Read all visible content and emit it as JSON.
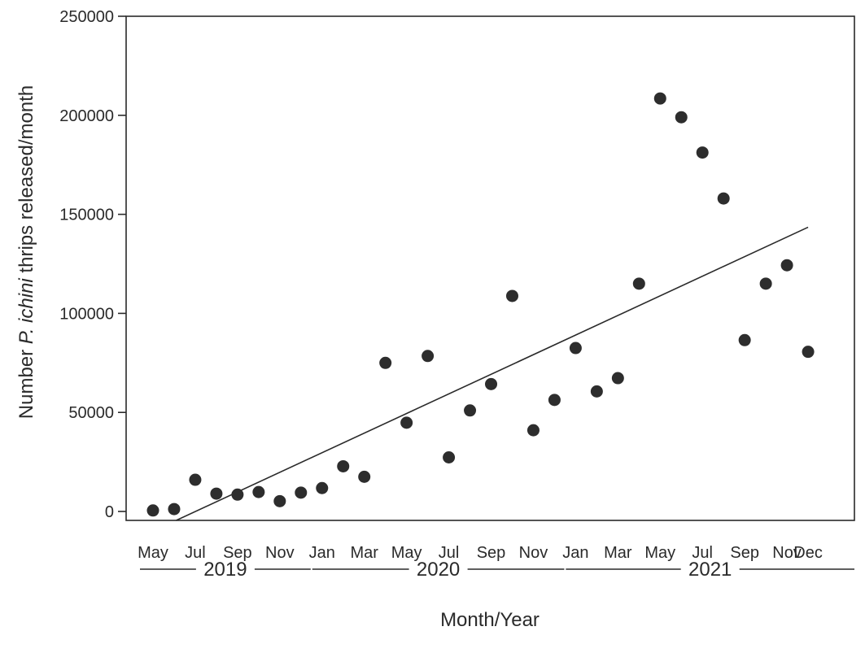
{
  "chart_data": {
    "type": "scatter",
    "title": "",
    "xlabel": "Month/Year",
    "ylabel_parts": {
      "before": "Number ",
      "italic": "P. ichini",
      "after": " thrips released/month"
    },
    "ylim": [
      0,
      250000
    ],
    "y_ticks": [
      0,
      50000,
      100000,
      150000,
      200000,
      250000
    ],
    "y_tick_labels": [
      "0",
      "50000",
      "100000",
      "150000",
      "200000",
      "250000"
    ],
    "x_tick_labels": [
      {
        "month": "2019-05",
        "label": "May"
      },
      {
        "month": "2019-07",
        "label": "Jul"
      },
      {
        "month": "2019-09",
        "label": "Sep"
      },
      {
        "month": "2019-11",
        "label": "Nov"
      },
      {
        "month": "2020-01",
        "label": "Jan"
      },
      {
        "month": "2020-03",
        "label": "Mar"
      },
      {
        "month": "2020-05",
        "label": "May"
      },
      {
        "month": "2020-07",
        "label": "Jul"
      },
      {
        "month": "2020-09",
        "label": "Sep"
      },
      {
        "month": "2020-11",
        "label": "Nov"
      },
      {
        "month": "2021-01",
        "label": "Jan"
      },
      {
        "month": "2021-03",
        "label": "Mar"
      },
      {
        "month": "2021-05",
        "label": "May"
      },
      {
        "month": "2021-07",
        "label": "Jul"
      },
      {
        "month": "2021-09",
        "label": "Sep"
      },
      {
        "month": "2021-11",
        "label": "Nov"
      },
      {
        "month": "2021-12",
        "label": "Dec"
      }
    ],
    "year_groups": [
      {
        "label": "2019",
        "from": "2019-05",
        "to": "2019-12"
      },
      {
        "label": "2020",
        "from": "2020-01",
        "to": "2020-12"
      },
      {
        "label": "2021",
        "from": "2021-01",
        "to": "2021-12"
      }
    ],
    "points": [
      {
        "month": "2019-05",
        "value": 500
      },
      {
        "month": "2019-06",
        "value": 1200
      },
      {
        "month": "2019-07",
        "value": 16000
      },
      {
        "month": "2019-08",
        "value": 9000
      },
      {
        "month": "2019-09",
        "value": 8500
      },
      {
        "month": "2019-10",
        "value": 9800
      },
      {
        "month": "2019-11",
        "value": 5200
      },
      {
        "month": "2019-12",
        "value": 9500
      },
      {
        "month": "2020-01",
        "value": 11800
      },
      {
        "month": "2020-02",
        "value": 22800
      },
      {
        "month": "2020-03",
        "value": 17500
      },
      {
        "month": "2020-04",
        "value": 75000
      },
      {
        "month": "2020-05",
        "value": 44800
      },
      {
        "month": "2020-06",
        "value": 78500
      },
      {
        "month": "2020-07",
        "value": 27300
      },
      {
        "month": "2020-08",
        "value": 51000
      },
      {
        "month": "2020-09",
        "value": 64300
      },
      {
        "month": "2020-10",
        "value": 108800
      },
      {
        "month": "2020-11",
        "value": 41000
      },
      {
        "month": "2020-12",
        "value": 56300
      },
      {
        "month": "2021-01",
        "value": 82500
      },
      {
        "month": "2021-02",
        "value": 60600
      },
      {
        "month": "2021-03",
        "value": 67300
      },
      {
        "month": "2021-04",
        "value": 115000
      },
      {
        "month": "2021-05",
        "value": 208500
      },
      {
        "month": "2021-06",
        "value": 199000
      },
      {
        "month": "2021-07",
        "value": 181200
      },
      {
        "month": "2021-08",
        "value": 158000
      },
      {
        "month": "2021-09",
        "value": 86500
      },
      {
        "month": "2021-10",
        "value": 115000
      },
      {
        "month": "2021-11",
        "value": 124300
      },
      {
        "month": "2021-12",
        "value": 80600
      }
    ],
    "trendline": [
      {
        "month": "2019-06",
        "value": -5000
      },
      {
        "month": "2021-12",
        "value": 143500
      }
    ],
    "grid": false,
    "legend": "none",
    "colors": {
      "ink": "#2a2a2a",
      "point": "#2d2d2d",
      "background": "#ffffff"
    }
  }
}
